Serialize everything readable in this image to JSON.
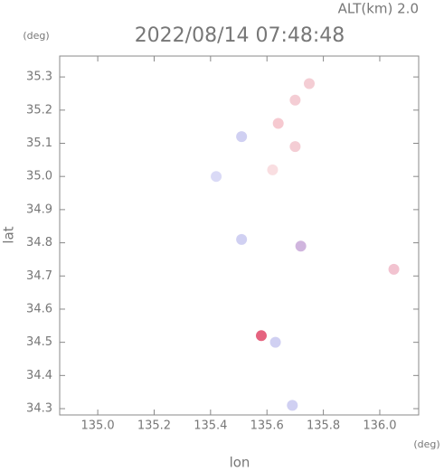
{
  "chart_data": {
    "type": "scatter",
    "altitude_label": "ALT(km) 2.0",
    "title": "2022/08/14 07:48:48",
    "y_unit": "(deg)",
    "x_unit": "(deg)",
    "ylabel": "lat",
    "xlabel": "lon",
    "xlim": [
      134.865,
      136.138
    ],
    "ylim": [
      34.281,
      35.363
    ],
    "xticks": [
      {
        "value": 135,
        "label": "135.0"
      },
      135.2,
      135.4,
      135.6,
      135.8,
      {
        "value": 136,
        "label": "136.0"
      }
    ],
    "yticks": [
      34.3,
      34.4,
      34.5,
      34.6,
      34.7,
      34.8,
      34.9,
      {
        "value": 35,
        "label": "35.0"
      },
      35.1,
      35.2,
      35.3
    ],
    "x": [
      135.75,
      135.7,
      135.62,
      135.42,
      135.7,
      135.51,
      135.51,
      135.72,
      136.05,
      135.58,
      135.63,
      135.69,
      135.64
    ],
    "values": [
      35.28,
      35.23,
      35.02,
      35.0,
      35.09,
      35.12,
      34.81,
      34.79,
      34.72,
      34.52,
      34.5,
      34.31,
      35.16
    ],
    "colors": [
      "#f2c4cc",
      "#f2c4cc",
      "#f8d8dc",
      "#d4d4f4",
      "#f2c4cc",
      "#c8c8f0",
      "#c8c8f0",
      "#c8a8d8",
      "#f0b8c8",
      "#e04868",
      "#c8c8f0",
      "#c8c8f0",
      "#f4c0c8"
    ]
  }
}
